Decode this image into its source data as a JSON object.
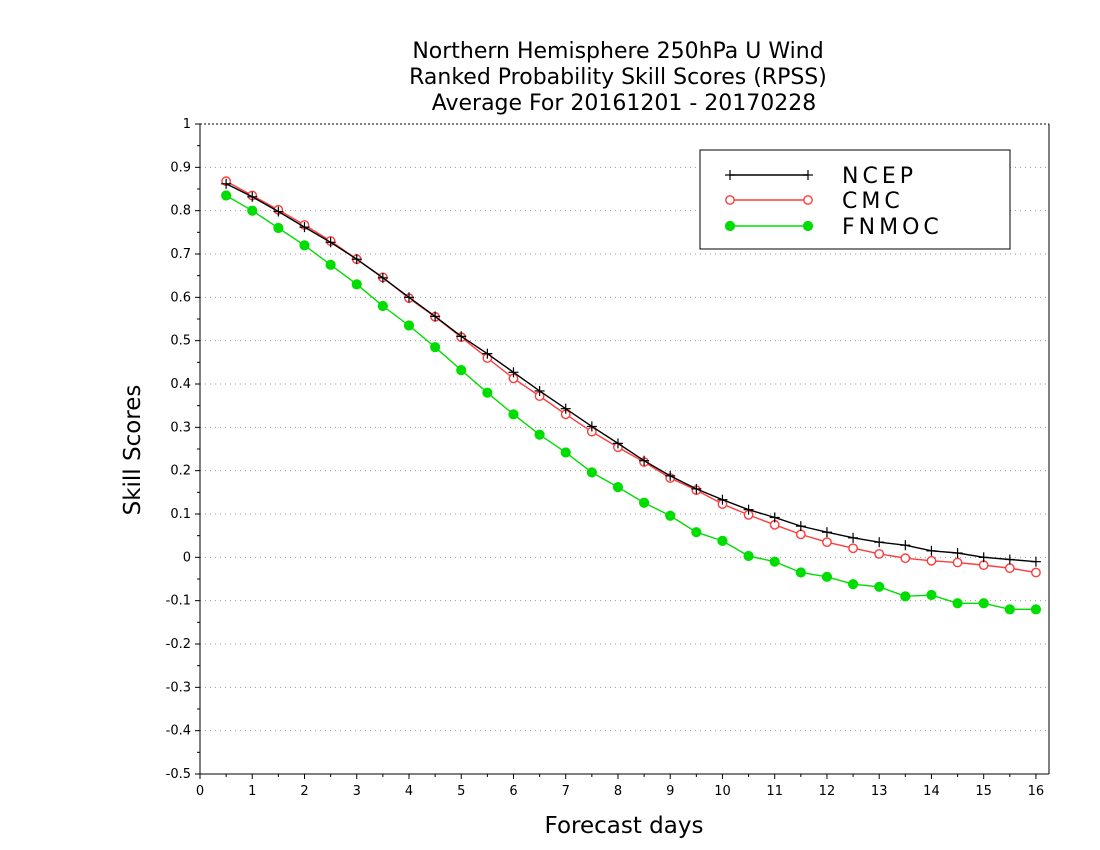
{
  "chart_data": {
    "type": "line",
    "title": [
      "Northern Hemisphere 250hPa U Wind",
      "Ranked Probability Skill Scores (RPSS)",
      "Average For 20161201 - 20170228"
    ],
    "xlabel": "Forecast days",
    "ylabel": "Skill Scores",
    "xlim": [
      0,
      16.25
    ],
    "ylim": [
      -0.5,
      1
    ],
    "x_ticks": [
      0,
      1,
      2,
      3,
      4,
      5,
      6,
      7,
      8,
      9,
      10,
      11,
      12,
      13,
      14,
      15,
      16
    ],
    "x_tick_labels": [
      "0",
      "1",
      "2",
      "3",
      "4",
      "5",
      "6",
      "7",
      "8",
      "9",
      "10",
      "11",
      "12",
      "13",
      "14",
      "15",
      "16"
    ],
    "y_ticks": [
      -0.5,
      -0.4,
      -0.3,
      -0.2,
      -0.1,
      0,
      0.1,
      0.2,
      0.3,
      0.4,
      0.5,
      0.6,
      0.7,
      0.8,
      0.9,
      1
    ],
    "y_tick_labels": [
      "-0.5",
      "-0.4",
      "-0.3",
      "-0.2",
      "-0.1",
      "0",
      "0.1",
      "0.2",
      "0.3",
      "0.4",
      "0.5",
      "0.6",
      "0.7",
      "0.8",
      "0.9",
      "1"
    ],
    "grid": true,
    "legend_position": "top-right",
    "x": [
      0.5,
      1,
      1.5,
      2,
      2.5,
      3,
      3.5,
      4,
      4.5,
      5,
      5.5,
      6,
      6.5,
      7,
      7.5,
      8,
      8.5,
      9,
      9.5,
      10,
      10.5,
      11,
      11.5,
      12,
      12.5,
      13,
      13.5,
      14,
      14.5,
      15,
      15.5,
      16
    ],
    "series": [
      {
        "name": "NCEP",
        "color": "#000000",
        "marker": "plus",
        "values": [
          0.862,
          0.832,
          0.798,
          0.762,
          0.727,
          0.688,
          0.645,
          0.6,
          0.556,
          0.51,
          0.47,
          0.427,
          0.384,
          0.343,
          0.302,
          0.263,
          0.223,
          0.188,
          0.158,
          0.133,
          0.11,
          0.092,
          0.072,
          0.058,
          0.045,
          0.035,
          0.028,
          0.015,
          0.01,
          0.0,
          -0.005,
          -0.01
        ]
      },
      {
        "name": "CMC",
        "color": "#ff3b3b",
        "marker": "open-circle",
        "values": [
          0.868,
          0.835,
          0.802,
          0.767,
          0.73,
          0.688,
          0.646,
          0.598,
          0.555,
          0.508,
          0.46,
          0.413,
          0.372,
          0.33,
          0.29,
          0.254,
          0.22,
          0.183,
          0.155,
          0.123,
          0.098,
          0.075,
          0.053,
          0.035,
          0.021,
          0.008,
          -0.002,
          -0.008,
          -0.012,
          -0.018,
          -0.025,
          -0.035
        ]
      },
      {
        "name": "FNMOC",
        "color": "#00dd00",
        "marker": "filled-circle",
        "values": [
          0.835,
          0.8,
          0.76,
          0.72,
          0.675,
          0.63,
          0.58,
          0.535,
          0.485,
          0.432,
          0.38,
          0.33,
          0.283,
          0.242,
          0.196,
          0.162,
          0.126,
          0.096,
          0.058,
          0.038,
          0.003,
          -0.01,
          -0.035,
          -0.045,
          -0.062,
          -0.068,
          -0.09,
          -0.087,
          -0.106,
          -0.106,
          -0.12,
          -0.12
        ]
      }
    ]
  }
}
